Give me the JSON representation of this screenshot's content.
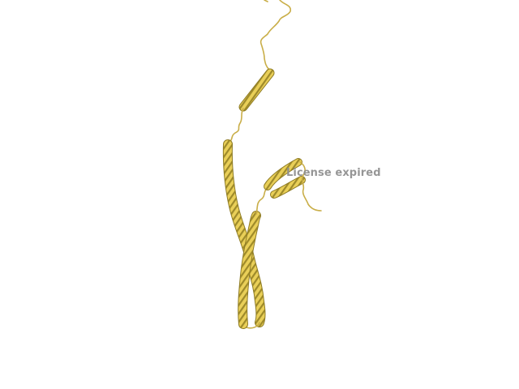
{
  "viewer": {
    "watermark_text": "License expired",
    "watermark_color": "#8e8e8e",
    "background_color": "#ffffff"
  },
  "structure": {
    "helix_color": "#e9cf58",
    "helix_shadow_color": "#8f7c24",
    "coil_color": "#d8bd52"
  }
}
